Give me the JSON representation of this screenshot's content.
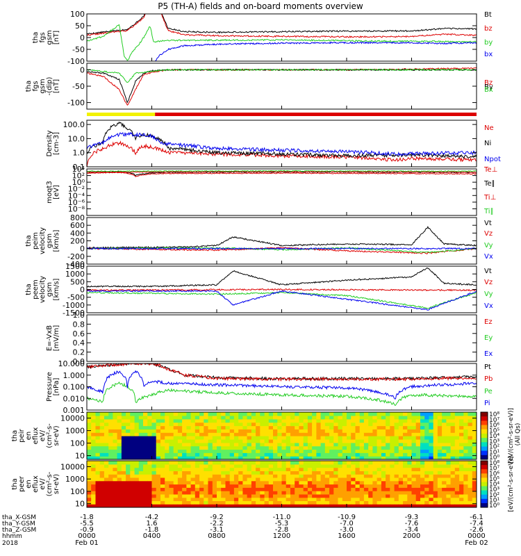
{
  "title": "P5 (TH-A) fields and on-board moments overview",
  "colors": {
    "black": "#000000",
    "red": "#dd0000",
    "green": "#22cc22",
    "blue": "#0000ee",
    "yellow": "#f2f200"
  },
  "chart_data": [
    {
      "type": "line",
      "ylabel": [
        "tha",
        "fgs",
        "gsm",
        "[nT]"
      ],
      "ylim": [
        -100,
        100
      ],
      "yticks": [
        {
          "v": 100,
          "t": "100"
        },
        {
          "v": 50,
          "t": "50"
        },
        {
          "v": 0,
          "t": "0"
        },
        {
          "v": -50,
          "t": "-50"
        },
        {
          "v": -100,
          "t": "-100"
        }
      ],
      "series": [
        {
          "name": "Bt",
          "color": "black",
          "x": [
            0,
            2.5,
            3.0,
            3.5,
            4.0,
            4.2,
            4.5,
            5,
            6,
            8,
            12,
            16,
            20,
            21.5,
            22,
            24
          ],
          "y": [
            15,
            35,
            60,
            90,
            180,
            230,
            120,
            40,
            25,
            22,
            25,
            27,
            28,
            35,
            38,
            37
          ]
        },
        {
          "name": "bz",
          "color": "red",
          "x": [
            0,
            2.5,
            3.0,
            3.5,
            4.0,
            4.2,
            4.5,
            5,
            6,
            8,
            12,
            16,
            20,
            21.5,
            22,
            24
          ],
          "y": [
            10,
            30,
            55,
            85,
            170,
            220,
            115,
            30,
            12,
            8,
            5,
            3,
            4,
            12,
            14,
            10
          ]
        },
        {
          "name": "by",
          "color": "green",
          "x": [
            0,
            1,
            2,
            2.3,
            2.5,
            2.8,
            3.2,
            3.5,
            3.9,
            4.1,
            4.5,
            5,
            6,
            12,
            18,
            24
          ],
          "y": [
            -15,
            5,
            55,
            -80,
            -100,
            -60,
            -30,
            0,
            50,
            -20,
            -15,
            -12,
            -12,
            -10,
            -15,
            -18
          ]
        },
        {
          "name": "bx",
          "color": "blue",
          "x": [
            4.2,
            4.5,
            5,
            6,
            8,
            12,
            16,
            20,
            22,
            24
          ],
          "y": [
            -100,
            -75,
            -50,
            -35,
            -28,
            -24,
            -22,
            -22,
            -25,
            -22
          ]
        }
      ]
    },
    {
      "type": "line",
      "ylabel": [
        "tha",
        "fgs",
        "gsm",
        "-(dip)",
        "[nT]"
      ],
      "ylim": [
        -120,
        20
      ],
      "yticks": [
        {
          "v": 0,
          "t": "0"
        },
        {
          "v": -50,
          "t": "-50"
        },
        {
          "v": -100,
          "t": "-100"
        }
      ],
      "series": [
        {
          "name": "Bz",
          "color": "red",
          "x": [
            0,
            1,
            2,
            2.5,
            3,
            3.5,
            4,
            5,
            8,
            12,
            16,
            20,
            24
          ],
          "y": [
            -10,
            -20,
            -60,
            -110,
            -60,
            -15,
            -8,
            0,
            0,
            0,
            0,
            2,
            5
          ]
        },
        {
          "name": "By",
          "color": "black",
          "x": [
            0,
            1,
            2,
            2.5,
            3,
            3.5,
            4,
            5,
            8,
            12,
            16,
            20,
            24
          ],
          "y": [
            -5,
            -10,
            -30,
            -100,
            -35,
            -10,
            -3,
            0,
            0,
            0,
            0,
            0,
            0
          ]
        },
        {
          "name": "Bx",
          "color": "green",
          "x": [
            0,
            2,
            2.5,
            3,
            4,
            5,
            24
          ],
          "y": [
            0,
            -10,
            -40,
            -10,
            -5,
            0,
            0
          ]
        }
      ]
    },
    {
      "type": "line",
      "ylabel": [
        "Density",
        "[cm-3]"
      ],
      "ylim": [
        0.1,
        200
      ],
      "log": true,
      "yticks": [
        {
          "v": 100,
          "t": "100.0"
        },
        {
          "v": 10,
          "t": "10.0"
        },
        {
          "v": 1,
          "t": "1.0"
        },
        {
          "v": 0.1,
          "t": "0.1"
        }
      ],
      "series": [
        {
          "name": "Ne",
          "color": "red",
          "x": [
            0,
            1,
            2,
            3,
            3.5,
            4,
            5,
            8,
            12,
            16,
            19,
            20,
            24
          ],
          "y": [
            0.1,
            2,
            5,
            1,
            3,
            2.5,
            1,
            0.8,
            0.6,
            0.5,
            0.3,
            0.4,
            0.3
          ]
        },
        {
          "name": "Ni",
          "color": "black",
          "x": [
            0,
            1,
            2,
            2.5,
            3,
            3.5,
            4,
            5,
            8,
            12,
            16,
            20,
            24
          ],
          "y": [
            1,
            5,
            120,
            50,
            10,
            20,
            15,
            2,
            1,
            0.8,
            0.6,
            0.7,
            0.5
          ]
        },
        {
          "name": "Npot",
          "color": "blue",
          "x": [
            0,
            1,
            2,
            3,
            4,
            4.5,
            5,
            8,
            12,
            16,
            19,
            20,
            24
          ],
          "y": [
            2,
            5,
            20,
            20,
            15,
            5,
            4,
            2,
            1.5,
            1.2,
            0.8,
            0.9,
            1
          ]
        }
      ]
    },
    {
      "type": "line",
      "ylabel": [
        "moqt3",
        "[eV]"
      ],
      "ylim": [
        1e-10,
        10000.0
      ],
      "log": true,
      "yticks": [
        {
          "v": 10000.0,
          "t": "10⁴"
        },
        {
          "v": 100.0,
          "t": "10²"
        },
        {
          "v": 1,
          "t": "10⁰"
        },
        {
          "v": 0.01,
          "t": "10⁻²"
        },
        {
          "v": 0.0001,
          "t": "10⁻⁴"
        },
        {
          "v": 1e-06,
          "t": "10⁻⁶"
        },
        {
          "v": 1e-08,
          "t": "10⁻⁸"
        }
      ],
      "series": [
        {
          "name": "Te⊥",
          "color": "red",
          "x": [
            0,
            2,
            3,
            4,
            5,
            12,
            24
          ],
          "y": [
            500,
            800,
            50,
            300,
            400,
            500,
            300
          ]
        },
        {
          "name": "Te∥",
          "color": "black",
          "x": [
            0,
            2,
            3,
            4,
            5,
            12,
            24
          ],
          "y": [
            1000,
            1500,
            100,
            600,
            900,
            1200,
            800
          ]
        },
        {
          "name": "Ti⊥",
          "color": "red",
          "x": [
            0,
            12,
            24
          ],
          "y": [
            1000,
            1500,
            1000
          ]
        },
        {
          "name": "Ti∥",
          "color": "green",
          "x": [
            0,
            12,
            24
          ],
          "y": [
            2000,
            2500,
            2000
          ]
        }
      ]
    },
    {
      "type": "line",
      "ylabel": [
        "tha",
        "peim",
        "velocity",
        "gsm",
        "[km/s]"
      ],
      "ylim": [
        -400,
        800
      ],
      "yticks": [
        {
          "v": 800,
          "t": "800"
        },
        {
          "v": 600,
          "t": "600"
        },
        {
          "v": 400,
          "t": "400"
        },
        {
          "v": 200,
          "t": "200"
        },
        {
          "v": 0,
          "t": "0"
        },
        {
          "v": -200,
          "t": "-200"
        },
        {
          "v": -400,
          "t": "-400"
        }
      ],
      "series": [
        {
          "name": "Vt",
          "color": "black",
          "x": [
            0,
            6,
            8,
            9,
            12,
            16,
            20,
            21,
            22,
            24
          ],
          "y": [
            20,
            40,
            80,
            300,
            80,
            120,
            100,
            550,
            120,
            80
          ]
        },
        {
          "name": "Vz",
          "color": "red",
          "x": [
            0,
            8,
            12,
            16,
            21,
            24
          ],
          "y": [
            0,
            -40,
            20,
            -60,
            -120,
            0
          ]
        },
        {
          "name": "Vy",
          "color": "green",
          "x": [
            0,
            8,
            12,
            16,
            21,
            24
          ],
          "y": [
            0,
            20,
            -30,
            20,
            -100,
            0
          ]
        },
        {
          "name": "Vx",
          "color": "blue",
          "x": [
            0,
            12,
            24
          ],
          "y": [
            0,
            0,
            0
          ]
        }
      ]
    },
    {
      "type": "line",
      "ylabel": [
        "tha",
        "peem",
        "velocity",
        "gsm",
        "[km/s]"
      ],
      "ylim": [
        -1500,
        1500
      ],
      "yticks": [
        {
          "v": 1500,
          "t": "1500"
        },
        {
          "v": 1000,
          "t": "1000"
        },
        {
          "v": 500,
          "t": "500"
        },
        {
          "v": 0,
          "t": "0"
        },
        {
          "v": -500,
          "t": "-500"
        },
        {
          "v": -1000,
          "t": "-1000"
        },
        {
          "v": -1500,
          "t": "-1500"
        }
      ],
      "series": [
        {
          "name": "Vt",
          "color": "black",
          "x": [
            0,
            4,
            8,
            9,
            12,
            16,
            20,
            21,
            22,
            24
          ],
          "y": [
            200,
            200,
            300,
            1200,
            300,
            600,
            800,
            1400,
            400,
            300
          ]
        },
        {
          "name": "Vz",
          "color": "red",
          "x": [
            0,
            12,
            24
          ],
          "y": [
            -50,
            0,
            -50
          ]
        },
        {
          "name": "Vy",
          "color": "green",
          "x": [
            0,
            8,
            12,
            16,
            21,
            24
          ],
          "y": [
            -200,
            -300,
            -200,
            -400,
            -1200,
            -200
          ]
        },
        {
          "name": "Vx",
          "color": "blue",
          "x": [
            0,
            8,
            9,
            12,
            21,
            24
          ],
          "y": [
            -100,
            -100,
            -1000,
            -100,
            -1300,
            -100
          ]
        }
      ]
    },
    {
      "type": "line",
      "ylabel": [
        "E=-VxB",
        "[mV/m]"
      ],
      "ylim": [
        0,
        1
      ],
      "yticks": [
        {
          "v": 1,
          "t": "1.0"
        },
        {
          "v": 0.8,
          "t": "0.8"
        },
        {
          "v": 0.6,
          "t": "0.6"
        },
        {
          "v": 0.4,
          "t": "0.4"
        },
        {
          "v": 0.2,
          "t": "0.2"
        },
        {
          "v": 0,
          "t": "0.0"
        }
      ],
      "series": [
        {
          "name": "Ez",
          "color": "red",
          "x": [],
          "y": []
        },
        {
          "name": "Ey",
          "color": "green",
          "x": [],
          "y": []
        },
        {
          "name": "Ex",
          "color": "blue",
          "x": [],
          "y": []
        }
      ]
    },
    {
      "type": "line",
      "ylabel": [
        "Pressure",
        "[nPa]"
      ],
      "ylim": [
        0.001,
        10
      ],
      "log": true,
      "yticks": [
        {
          "v": 10,
          "t": "10.000"
        },
        {
          "v": 1,
          "t": "1.000"
        },
        {
          "v": 0.1,
          "t": "0.100"
        },
        {
          "v": 0.01,
          "t": "0.010"
        },
        {
          "v": 0.001,
          "t": "0.001"
        }
      ],
      "series": [
        {
          "name": "Pt",
          "color": "black",
          "x": [
            0,
            3,
            4,
            5,
            6,
            8,
            12,
            16,
            20,
            24
          ],
          "y": [
            5,
            10,
            10,
            3,
            1,
            0.6,
            0.5,
            0.5,
            0.5,
            0.7
          ]
        },
        {
          "name": "Pb",
          "color": "red",
          "x": [
            0,
            3,
            4,
            5,
            6,
            8,
            12,
            16,
            20,
            24
          ],
          "y": [
            5,
            10,
            10,
            3,
            1,
            0.5,
            0.45,
            0.45,
            0.45,
            0.6
          ]
        },
        {
          "name": "Pe",
          "color": "green",
          "x": [
            0,
            1,
            2,
            3,
            4,
            5,
            8,
            12,
            16,
            19,
            20,
            24
          ],
          "y": [
            0.01,
            0.005,
            0.2,
            0.005,
            0.02,
            0.05,
            0.03,
            0.02,
            0.015,
            0.003,
            0.02,
            0.015
          ]
        },
        {
          "name": "Pi",
          "color": "blue",
          "x": [
            0,
            1,
            2,
            2.5,
            3,
            3.5,
            4,
            5,
            8,
            12,
            16,
            19,
            20,
            24
          ],
          "y": [
            0.1,
            0.03,
            2,
            0.05,
            2,
            0.1,
            0.3,
            0.2,
            0.15,
            0.1,
            0.08,
            0.01,
            0.1,
            0.2
          ]
        }
      ]
    },
    {
      "type": "heatmap",
      "ylabel": [
        "tha",
        "peir",
        "en",
        "eflux",
        "eV/",
        "(cm²-s-",
        "sr-eV)"
      ],
      "ylim": [
        5,
        30000
      ],
      "log": true,
      "yticks": [
        {
          "v": 10000,
          "t": "10000"
        },
        {
          "v": 1000,
          "t": "1000"
        },
        {
          "v": 100,
          "t": "100"
        },
        {
          "v": 10,
          "t": "10"
        }
      ],
      "colorbar": {
        "label": "[eV/(cm²-s-sr-eV)]",
        "ticks": [
          "10⁸",
          "10⁷",
          "10⁶",
          "10⁵",
          "10⁴",
          "10³",
          "10²",
          "10¹",
          "10⁰"
        ]
      }
    },
    {
      "type": "heatmap",
      "ylabel": [
        "tha",
        "peer",
        "en",
        "eflux",
        "eV/",
        "(cm²-s-",
        "sr-eV)"
      ],
      "ylim": [
        5,
        30000
      ],
      "log": true,
      "yticks": [
        {
          "v": 10000,
          "t": "10000"
        },
        {
          "v": 1000,
          "t": "1000"
        },
        {
          "v": 100,
          "t": "100"
        },
        {
          "v": 10,
          "t": "10"
        }
      ],
      "colorbar": {
        "label": "[eV/(cm²-s-sr-eV)]",
        "ticks": [
          "10⁸",
          "10⁷",
          "10⁶",
          "10⁵",
          "10⁴",
          "10³",
          "10²",
          "10¹",
          "10⁰"
        ]
      }
    }
  ],
  "legend_all": "(All Qs)",
  "xaxis": {
    "rows": [
      {
        "label": "tha_X-GSM",
        "values": [
          "-1.8",
          "-4.2",
          "-9.2",
          "-11.0",
          "-10.9",
          "-9.3",
          "-6.1"
        ]
      },
      {
        "label": "tha_Y-GSM",
        "values": [
          "-5.5",
          "1.6",
          "-2.2",
          "-5.3",
          "-7.0",
          "-7.6",
          "-7.4"
        ]
      },
      {
        "label": "tha_Z-GSM",
        "values": [
          "-0.9",
          "-1.8",
          "-3.1",
          "-2.8",
          "-3.0",
          "-3.4",
          "-2.6"
        ]
      },
      {
        "label": "hhmm",
        "values": [
          "0000",
          "0400",
          "0800",
          "1200",
          "1600",
          "2000",
          "0000"
        ]
      }
    ],
    "year": "2018",
    "date_left": "Feb 01",
    "date_right": "Feb 02",
    "xlim": [
      0,
      24
    ],
    "tick_hours": [
      0,
      4,
      8,
      12,
      16,
      20,
      24
    ]
  }
}
